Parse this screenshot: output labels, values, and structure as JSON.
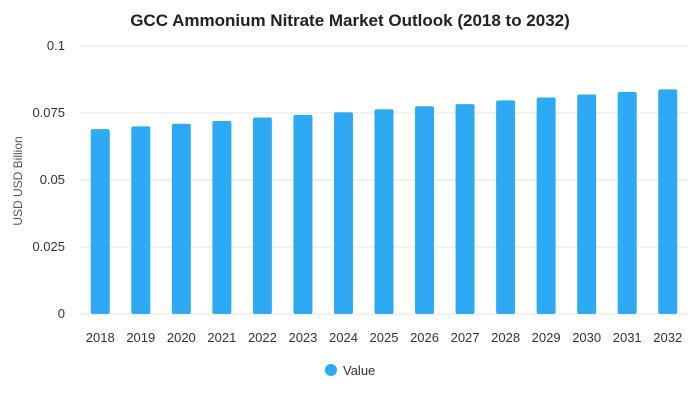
{
  "chart_data": {
    "type": "bar",
    "title": "GCC Ammonium Nitrate Market Outlook (2018 to 2032)",
    "ylabel": "USD USD Billion",
    "xlabel": "",
    "ylim": [
      0,
      0.1
    ],
    "yticks": [
      "0",
      "0.025",
      "0.05",
      "0.075",
      "0.1"
    ],
    "grid": true,
    "legend_position": "bottom-center",
    "categories": [
      "2018",
      "2019",
      "2020",
      "2021",
      "2022",
      "2023",
      "2024",
      "2025",
      "2026",
      "2027",
      "2028",
      "2029",
      "2030",
      "2031",
      "2032"
    ],
    "series": [
      {
        "name": "Value",
        "color": "#2eaaf5",
        "values": [
          0.069,
          0.07,
          0.071,
          0.072,
          0.0733,
          0.0743,
          0.0753,
          0.0764,
          0.0775,
          0.0783,
          0.0797,
          0.0808,
          0.0819,
          0.0829,
          0.0838
        ]
      }
    ]
  }
}
